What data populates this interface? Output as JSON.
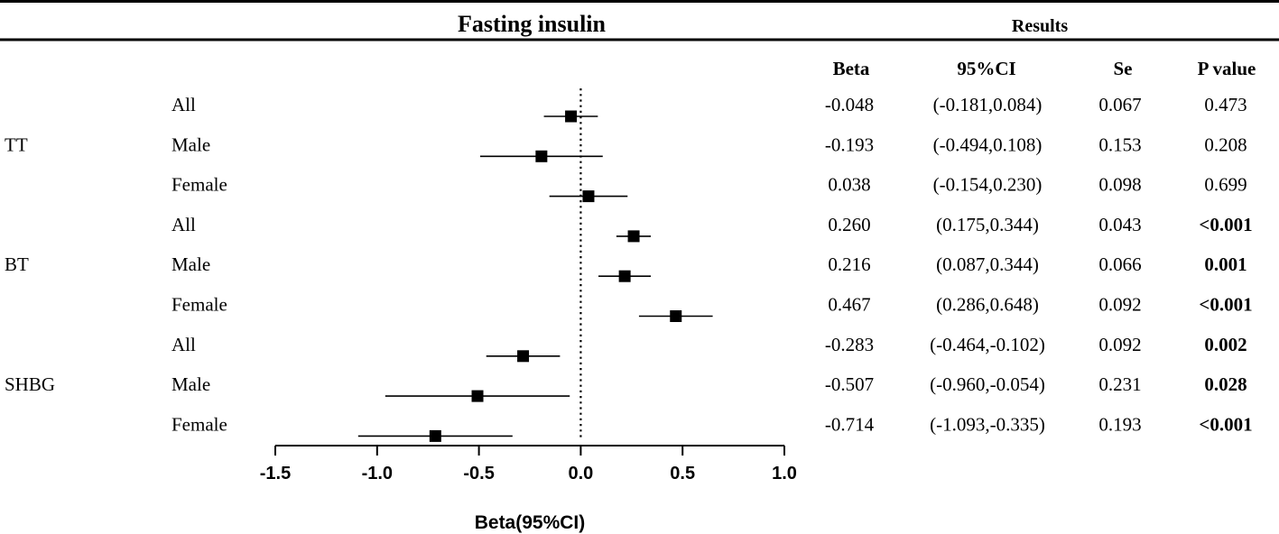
{
  "chart_data": {
    "type": "forest",
    "title": "Fasting insulin",
    "results_title": "Results",
    "xlabel": "Beta(95%CI)",
    "xlim": [
      -1.5,
      1.0
    ],
    "xticks": [
      -1.5,
      -1.0,
      -0.5,
      0.0,
      0.5,
      1.0
    ],
    "xtick_labels": [
      "-1.5",
      "-1.0",
      "-0.5",
      "0.0",
      "0.5",
      "1.0"
    ],
    "reference_line": 0,
    "columns": [
      "Beta",
      "95%CI",
      "Se",
      "P value"
    ],
    "groups": [
      {
        "name": "TT",
        "rows": [
          {
            "label": "All",
            "beta": -0.048,
            "lower": -0.181,
            "upper": 0.084,
            "beta_text": "-0.048",
            "ci_text": "(-0.181,0.084)",
            "se_text": "0.067",
            "p_text": "0.473",
            "p_bold": false
          },
          {
            "label": "Male",
            "beta": -0.193,
            "lower": -0.494,
            "upper": 0.108,
            "beta_text": "-0.193",
            "ci_text": "(-0.494,0.108)",
            "se_text": "0.153",
            "p_text": "0.208",
            "p_bold": false
          },
          {
            "label": "Female",
            "beta": 0.038,
            "lower": -0.154,
            "upper": 0.23,
            "beta_text": "0.038",
            "ci_text": "(-0.154,0.230)",
            "se_text": "0.098",
            "p_text": "0.699",
            "p_bold": false
          }
        ]
      },
      {
        "name": "BT",
        "rows": [
          {
            "label": "All",
            "beta": 0.26,
            "lower": 0.175,
            "upper": 0.344,
            "beta_text": "0.260",
            "ci_text": "(0.175,0.344)",
            "se_text": "0.043",
            "p_text": "<0.001",
            "p_bold": true
          },
          {
            "label": "Male",
            "beta": 0.216,
            "lower": 0.087,
            "upper": 0.344,
            "beta_text": "0.216",
            "ci_text": "(0.087,0.344)",
            "se_text": "0.066",
            "p_text": "0.001",
            "p_bold": true
          },
          {
            "label": "Female",
            "beta": 0.467,
            "lower": 0.286,
            "upper": 0.648,
            "beta_text": "0.467",
            "ci_text": "(0.286,0.648)",
            "se_text": "0.092",
            "p_text": "<0.001",
            "p_bold": true
          }
        ]
      },
      {
        "name": "SHBG",
        "rows": [
          {
            "label": "All",
            "beta": -0.283,
            "lower": -0.464,
            "upper": -0.102,
            "beta_text": "-0.283",
            "ci_text": "(-0.464,-0.102)",
            "se_text": "0.092",
            "p_text": "0.002",
            "p_bold": true
          },
          {
            "label": "Male",
            "beta": -0.507,
            "lower": -0.96,
            "upper": -0.054,
            "beta_text": "-0.507",
            "ci_text": "(-0.960,-0.054)",
            "se_text": "0.231",
            "p_text": "0.028",
            "p_bold": true
          },
          {
            "label": "Female",
            "beta": -0.714,
            "lower": -1.093,
            "upper": -0.335,
            "beta_text": "-0.714",
            "ci_text": "(-1.093,-0.335)",
            "se_text": "0.193",
            "p_text": "<0.001",
            "p_bold": true
          }
        ]
      }
    ]
  },
  "colors": {
    "ink": "#000000",
    "background": "#ffffff"
  }
}
